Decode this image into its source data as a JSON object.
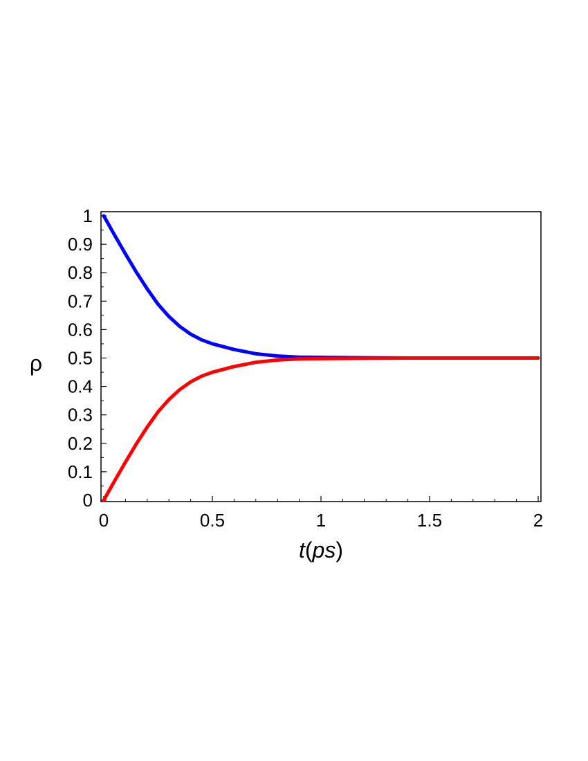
{
  "chart_data": {
    "type": "line",
    "xlabel": {
      "var": "t",
      "open": "(",
      "unit": "ps",
      "close": ")"
    },
    "ylabel": "ρ",
    "xlim": [
      0,
      2
    ],
    "ylim": [
      0,
      1
    ],
    "xticks": [
      "0",
      "0.5",
      "1",
      "1.5",
      "2"
    ],
    "yticks": [
      "0",
      "0.1",
      "0.2",
      "0.3",
      "0.4",
      "0.5",
      "0.6",
      "0.7",
      "0.8",
      "0.9",
      "1"
    ],
    "grid": false,
    "legend": false,
    "x": [
      0,
      0.05,
      0.1,
      0.15,
      0.2,
      0.25,
      0.3,
      0.35,
      0.4,
      0.45,
      0.5,
      0.6,
      0.7,
      0.8,
      0.9,
      1.0,
      1.2,
      1.4,
      1.6,
      1.8,
      2.0
    ],
    "series": [
      {
        "color": "#0000ff",
        "values": [
          1.0,
          0.932,
          0.866,
          0.802,
          0.743,
          0.689,
          0.646,
          0.611,
          0.584,
          0.564,
          0.55,
          0.53,
          0.515,
          0.507,
          0.503,
          0.502,
          0.501,
          0.5,
          0.5,
          0.5,
          0.5
        ]
      },
      {
        "color": "#ff0000",
        "values": [
          0.0,
          0.068,
          0.134,
          0.198,
          0.257,
          0.311,
          0.354,
          0.389,
          0.416,
          0.436,
          0.45,
          0.47,
          0.485,
          0.493,
          0.497,
          0.498,
          0.499,
          0.5,
          0.5,
          0.5,
          0.5
        ]
      }
    ]
  }
}
